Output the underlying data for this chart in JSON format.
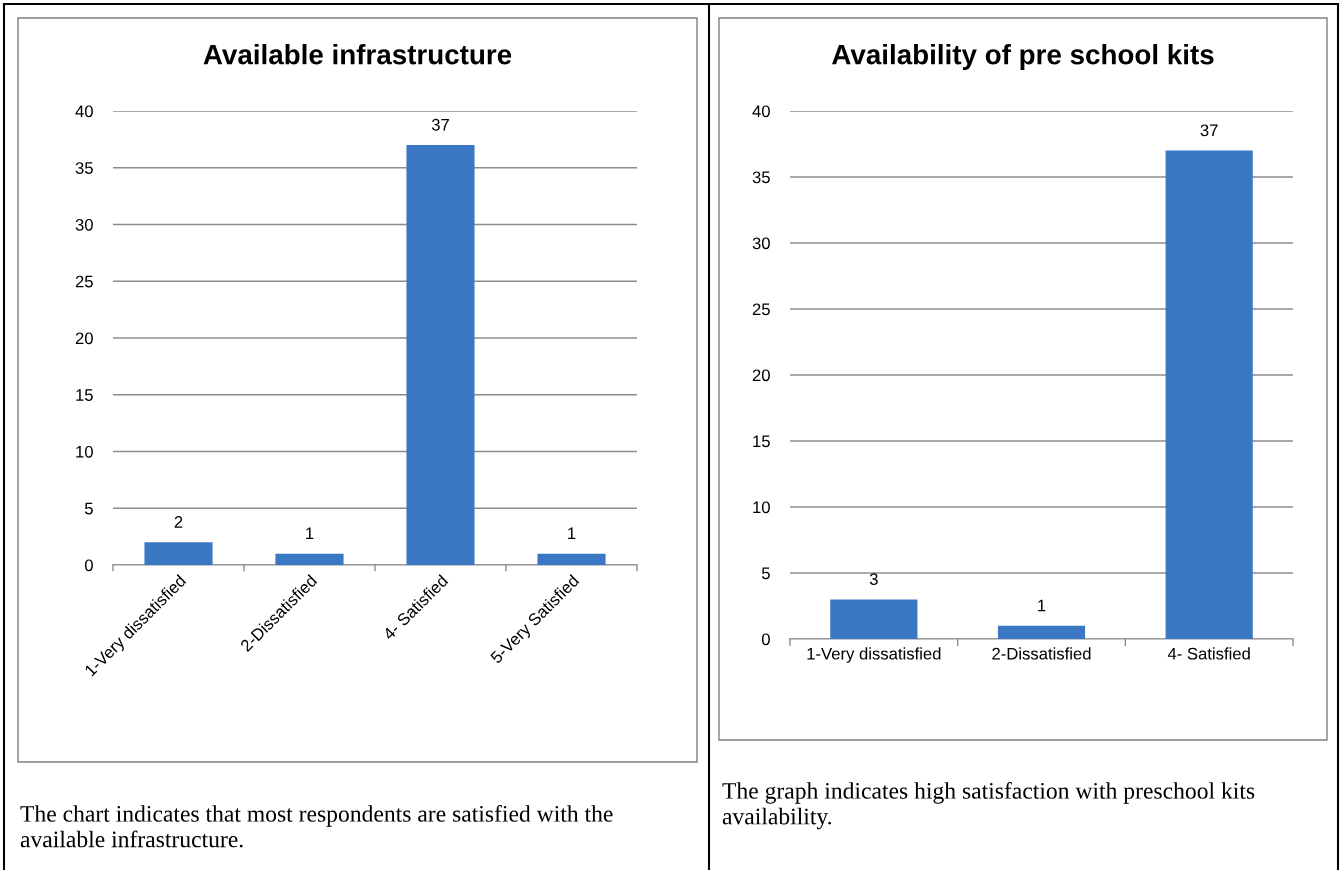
{
  "chart_data": [
    {
      "type": "bar",
      "title": "Available infrastructure",
      "categories": [
        "1-Very dissatisfied",
        "2-Dissatisfied",
        "4- Satisfied",
        "5-Very Satisfied"
      ],
      "values": [
        2,
        1,
        37,
        1
      ],
      "color": "#3a78c3",
      "ylim": [
        0,
        40
      ],
      "yticks": [
        0,
        5,
        10,
        15,
        20,
        25,
        30,
        35,
        40
      ],
      "grid": "y",
      "data_labels": true,
      "annotations": [
        "The chart indicates that most respondents are satisfied with the available infrastructure."
      ]
    },
    {
      "type": "bar",
      "title": "Availability of pre school kits",
      "categories": [
        "1-Very dissatisfied",
        "2-Dissatisfied",
        "4- Satisfied"
      ],
      "values": [
        3,
        1,
        37
      ],
      "color": "#3a78c3",
      "ylim": [
        0,
        40
      ],
      "yticks": [
        0,
        5,
        10,
        15,
        20,
        25,
        30,
        35,
        40
      ],
      "grid": "y",
      "data_labels": true,
      "annotations": [
        "The graph indicates high satisfaction with preschool kits availability."
      ]
    }
  ]
}
